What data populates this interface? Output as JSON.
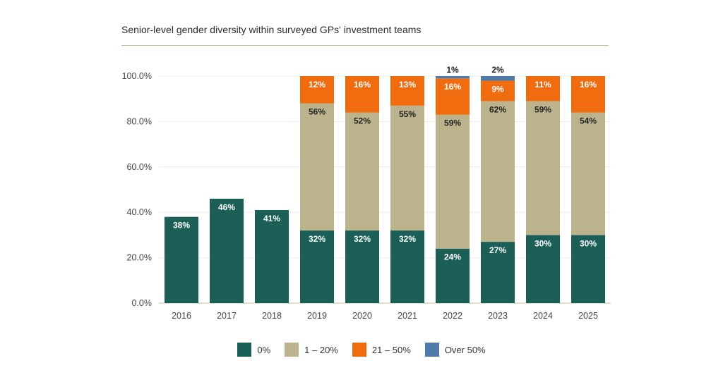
{
  "chart_data": {
    "type": "bar",
    "stacked": true,
    "title": "Senior-level gender diversity within surveyed GPs' investment teams",
    "xlabel": "",
    "ylabel": "",
    "ylim": [
      0,
      100
    ],
    "yticks": [
      "0.0%",
      "20.0%",
      "40.0%",
      "60.0%",
      "80.0%",
      "100.0%"
    ],
    "grid": true,
    "legend_position": "bottom",
    "categories": [
      "2016",
      "2017",
      "2018",
      "2019",
      "2020",
      "2021",
      "2022",
      "2023",
      "2024",
      "2025"
    ],
    "series": [
      {
        "name": "0%",
        "color": "#1c5f56",
        "label_color": "#ffffff",
        "values": [
          38,
          46,
          41,
          32,
          32,
          32,
          24,
          27,
          30,
          30
        ]
      },
      {
        "name": "1 – 20%",
        "color": "#bcb38d",
        "label_color": "#222222",
        "values": [
          null,
          null,
          null,
          56,
          52,
          55,
          59,
          62,
          59,
          54
        ]
      },
      {
        "name": "21 – 50%",
        "color": "#f06c0e",
        "label_color": "#ffffff",
        "values": [
          null,
          null,
          null,
          12,
          16,
          13,
          16,
          9,
          11,
          16
        ]
      },
      {
        "name": "Over 50%",
        "color": "#4e7aa7",
        "label_color": "#222222",
        "values": [
          null,
          null,
          null,
          null,
          null,
          null,
          1,
          2,
          null,
          null
        ]
      }
    ]
  }
}
